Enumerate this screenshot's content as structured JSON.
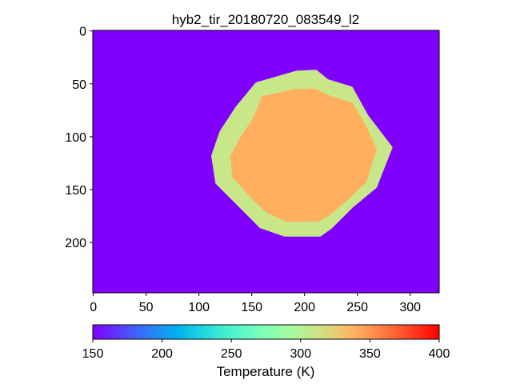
{
  "chart_data": {
    "type": "image",
    "title": "hyb2_tir_20180720_083549_l2",
    "xlim": [
      -0.5,
      327.5
    ],
    "ylim": [
      247.5,
      -0.5
    ],
    "xticks": [
      0,
      50,
      100,
      150,
      200,
      250,
      300
    ],
    "yticks": [
      0,
      50,
      100,
      150,
      200
    ],
    "background_value": 150,
    "regions": [
      {
        "x": [
          154,
          192,
          211,
          222,
          245,
          260,
          283,
          268,
          245,
          226,
          215,
          181,
          158,
          139,
          116,
          112,
          120,
          135
        ],
        "y": [
          49,
          38,
          37,
          46,
          53,
          80,
          110,
          148,
          167,
          186,
          194,
          194,
          186,
          167,
          144,
          118,
          95,
          72
        ],
        "value": 310
      },
      {
        "x": [
          160,
          193,
          210,
          225,
          245,
          258,
          268,
          258,
          240,
          222,
          212,
          183,
          165,
          150,
          132,
          130,
          140,
          152
        ],
        "y": [
          62,
          55,
          55,
          62,
          68,
          90,
          112,
          143,
          160,
          175,
          180,
          180,
          172,
          158,
          138,
          118,
          100,
          82
        ],
        "value": 340
      }
    ],
    "colormap": "rainbow",
    "clim": [
      150,
      400
    ],
    "cticks": [
      150,
      200,
      250,
      300,
      350,
      400
    ],
    "colorbar_label": "Temperature (K)"
  }
}
